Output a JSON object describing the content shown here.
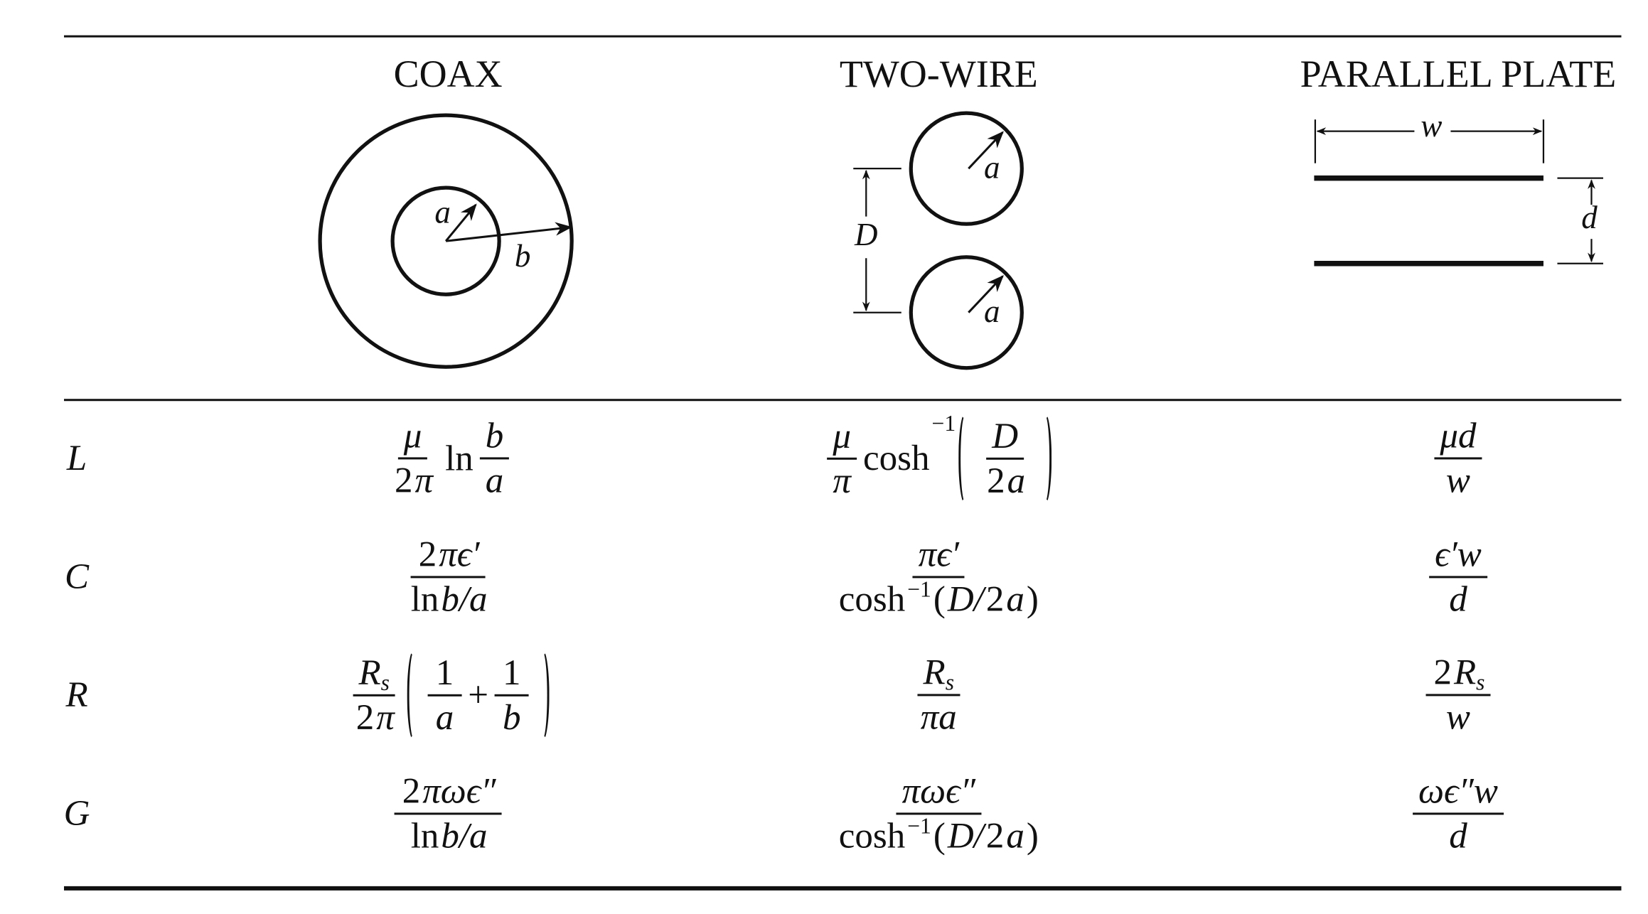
{
  "columns": [
    {
      "title": "COAX",
      "labels": [
        "a",
        "b"
      ]
    },
    {
      "title": "TWO-WIRE",
      "labels": [
        "D",
        "a",
        "a"
      ]
    },
    {
      "title": "PARALLEL PLATE",
      "labels": [
        "w",
        "d"
      ]
    }
  ],
  "rows": [
    {
      "label": "L",
      "cells": [
        [
          {
            "num": [
              {
                "v": "μ"
              }
            ],
            "den": [
              {
                "t": "2"
              },
              {
                "v": "π"
              }
            ]
          },
          {
            "t": "ln"
          },
          {
            "num": [
              {
                "v": "b"
              }
            ],
            "den": [
              {
                "v": "a"
              }
            ]
          }
        ],
        [
          {
            "num": [
              {
                "v": "μ"
              }
            ],
            "den": [
              {
                "v": "π"
              }
            ]
          },
          {
            "t": "cosh"
          },
          {
            "sup": "−1"
          },
          {
            "paren": [
              {
                "num": [
                  {
                    "v": "D"
                  }
                ],
                "den": [
                  {
                    "t": "2"
                  },
                  {
                    "v": "a"
                  }
                ]
              }
            ]
          }
        ],
        [
          {
            "num": [
              {
                "v": "μd"
              }
            ],
            "den": [
              {
                "v": "w"
              }
            ]
          }
        ]
      ]
    },
    {
      "label": "C",
      "cells": [
        [
          {
            "num": [
              {
                "t": "2"
              },
              {
                "v": "πϵ′"
              }
            ],
            "den": [
              {
                "t": "ln "
              },
              {
                "v": "b/a"
              }
            ]
          }
        ],
        [
          {
            "num": [
              {
                "v": "πϵ′"
              }
            ],
            "den": [
              {
                "t": "cosh"
              },
              {
                "sup": "−1"
              },
              {
                "t": "("
              },
              {
                "v": "D/"
              },
              {
                "t": "2"
              },
              {
                "v": "a"
              },
              {
                "t": ")"
              }
            ]
          }
        ],
        [
          {
            "num": [
              {
                "v": "ϵ′w"
              }
            ],
            "den": [
              {
                "v": "d"
              }
            ]
          }
        ]
      ]
    },
    {
      "label": "R",
      "cells": [
        [
          {
            "num": [
              {
                "v": "R"
              },
              {
                "sub": "s"
              }
            ],
            "den": [
              {
                "t": "2"
              },
              {
                "v": "π"
              }
            ]
          },
          {
            "paren": [
              {
                "num": [
                  {
                    "t": "1"
                  }
                ],
                "den": [
                  {
                    "v": "a"
                  }
                ]
              },
              {
                "t": "+"
              },
              {
                "num": [
                  {
                    "t": "1"
                  }
                ],
                "den": [
                  {
                    "v": "b"
                  }
                ]
              }
            ]
          }
        ],
        [
          {
            "num": [
              {
                "v": "R"
              },
              {
                "sub": "s"
              }
            ],
            "den": [
              {
                "v": "πa"
              }
            ]
          }
        ],
        [
          {
            "num": [
              {
                "t": "2"
              },
              {
                "v": "R"
              },
              {
                "sub": "s"
              }
            ],
            "den": [
              {
                "v": "w"
              }
            ]
          }
        ]
      ]
    },
    {
      "label": "G",
      "cells": [
        [
          {
            "num": [
              {
                "t": "2"
              },
              {
                "v": "πωϵ″"
              }
            ],
            "den": [
              {
                "t": "ln "
              },
              {
                "v": "b/a"
              }
            ]
          }
        ],
        [
          {
            "num": [
              {
                "v": "πωϵ″"
              }
            ],
            "den": [
              {
                "t": "cosh"
              },
              {
                "sup": "−1"
              },
              {
                "t": " ("
              },
              {
                "v": "D/"
              },
              {
                "t": "2"
              },
              {
                "v": "a"
              },
              {
                "t": ")"
              }
            ]
          }
        ],
        [
          {
            "num": [
              {
                "v": "ωϵ″w"
              }
            ],
            "den": [
              {
                "v": "d"
              }
            ]
          }
        ]
      ]
    }
  ]
}
